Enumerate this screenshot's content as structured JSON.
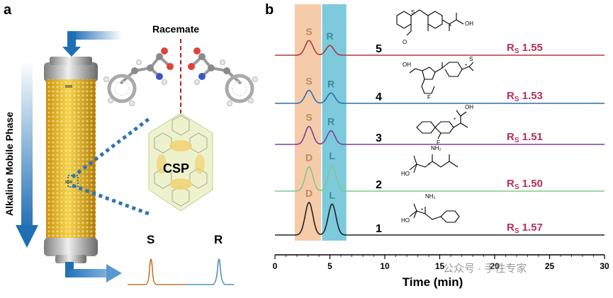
{
  "panel_a": {
    "label": "a",
    "mobile_phase_label": "Alkaline Mobile Phase",
    "racemate_label": "Racemate",
    "csp_label": "CSP",
    "peak_labels": [
      "S",
      "R"
    ],
    "colors": {
      "column_gold": "#e8b41e",
      "arrow_blue": "#1f6fb5",
      "peak_s": "#c8722a",
      "peak_r": "#4f8fb8",
      "divider_red": "#b22222"
    }
  },
  "panel_b": {
    "label": "b",
    "chart_data": {
      "type": "line",
      "xlabel": "Time (min)",
      "xlim": [
        0,
        30
      ],
      "x_ticks": [
        0,
        5,
        10,
        15,
        20,
        25,
        30
      ],
      "bands": [
        {
          "color": "#f2b98d",
          "x_range": [
            1.8,
            4.2
          ]
        },
        {
          "color": "#5bbdd3",
          "x_range": [
            4.3,
            6.5
          ]
        }
      ],
      "series": [
        {
          "name": "5",
          "color": "#b0383c",
          "peaks": [
            {
              "t": 3.1,
              "label": "S",
              "height": 0.45
            },
            {
              "t": 5.0,
              "label": "R",
              "height": 0.3
            }
          ],
          "resolution_text": "R",
          "resolution_sub": "S",
          "resolution_value": "1.55",
          "compound": "tiaprofenic-like (dibenzothiepinone)"
        },
        {
          "name": "4",
          "color": "#2e6ea8",
          "peaks": [
            {
              "t": 3.1,
              "label": "S",
              "height": 0.4
            },
            {
              "t": 5.1,
              "label": "R",
              "height": 0.32
            }
          ],
          "resolution_text": "R",
          "resolution_sub": "S",
          "resolution_value": "1.53",
          "compound": "sulindac"
        },
        {
          "name": "3",
          "color": "#7b3f98",
          "peaks": [
            {
              "t": 3.1,
              "label": "S",
              "height": 0.55
            },
            {
              "t": 5.1,
              "label": "R",
              "height": 0.42
            }
          ],
          "resolution_text": "R",
          "resolution_sub": "S",
          "resolution_value": "1.51",
          "compound": "flurbiprofen"
        },
        {
          "name": "2",
          "color": "#7fc98a",
          "peaks": [
            {
              "t": 3.1,
              "label": "D",
              "height": 0.75
            },
            {
              "t": 5.2,
              "label": "L",
              "height": 0.8
            }
          ],
          "resolution_text": "R",
          "resolution_sub": "S",
          "resolution_value": "1.50",
          "compound": "leucine"
        },
        {
          "name": "1",
          "color": "#222222",
          "peaks": [
            {
              "t": 3.1,
              "label": "D",
              "height": 1.0
            },
            {
              "t": 5.2,
              "label": "L",
              "height": 0.95
            }
          ],
          "resolution_text": "R",
          "resolution_sub": "S",
          "resolution_value": "1.57",
          "compound": "phenylalanine"
        }
      ],
      "grid": false
    }
  },
  "watermark": "公众号 · 手性专家",
  "structure_atoms": {
    "oh": "OH",
    "nh2": "NH₂",
    "ho": "HO",
    "f": "F",
    "s": "S",
    "so": "S",
    "o": "O",
    "star": "*"
  }
}
